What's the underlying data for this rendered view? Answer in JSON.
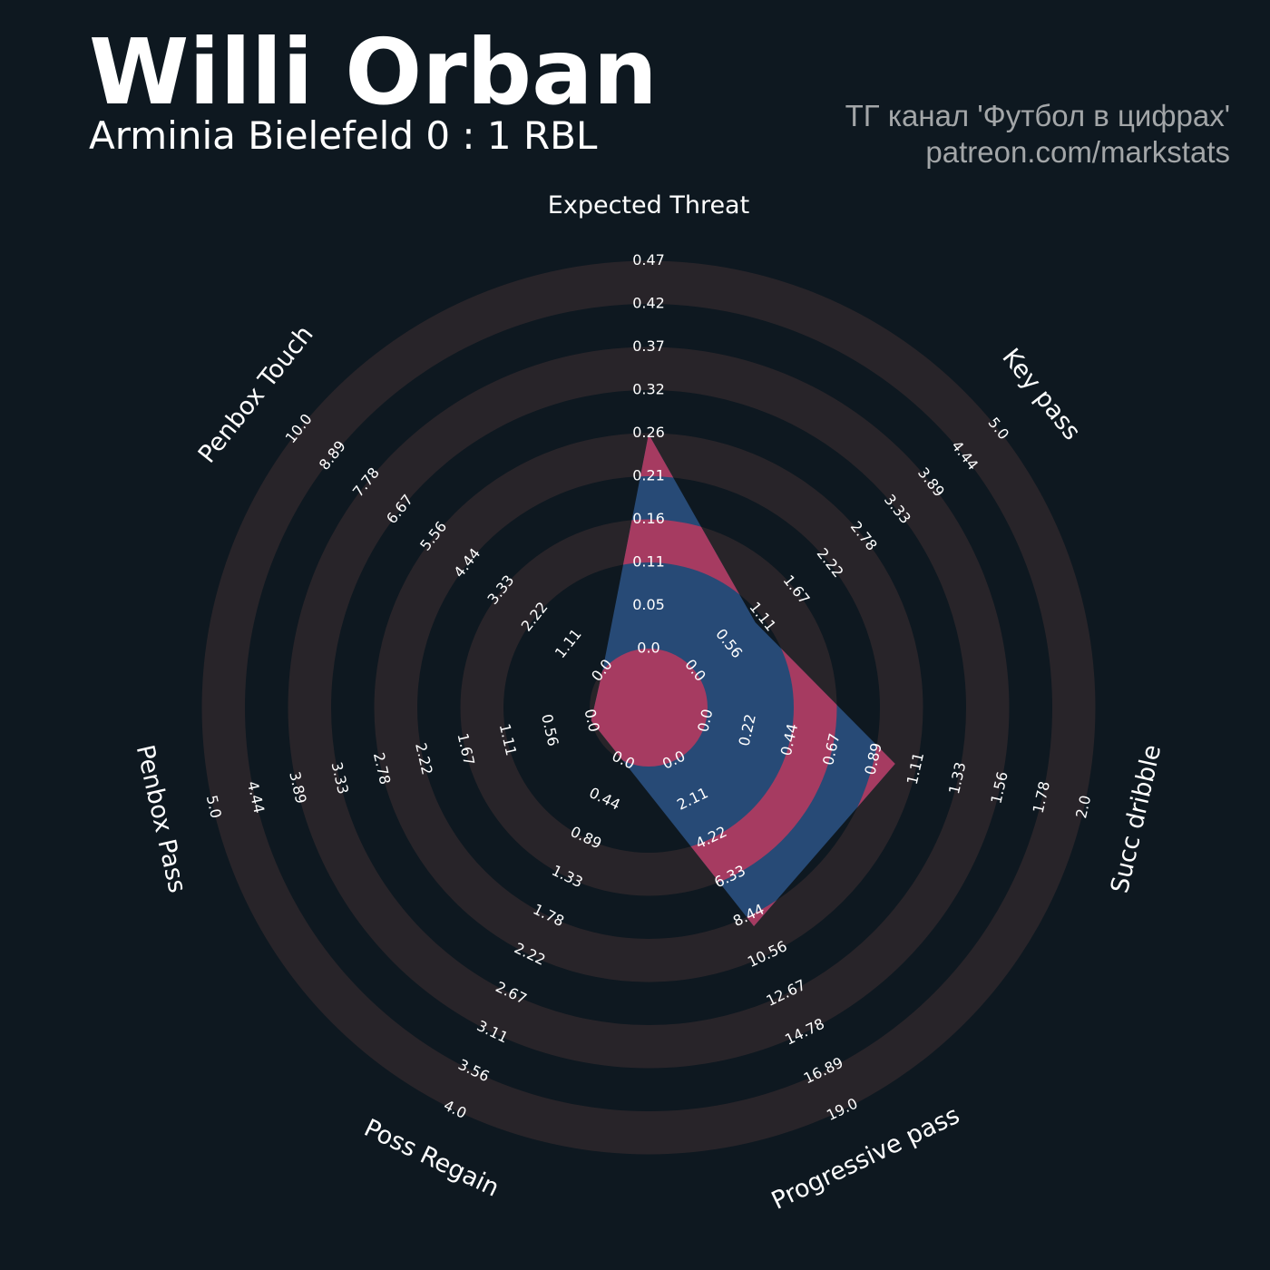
{
  "header": {
    "player_name": "Willi Orban",
    "match": "Arminia Bielefeld 0 : 1 RBL",
    "credit_line_1": "ТГ канал 'Футбол в цифрах'",
    "credit_line_2": "patreon.com/markstats"
  },
  "colors": {
    "background": "#0e1820",
    "ring": "#282429",
    "polygon": "#274a76",
    "polygon_highlight": "#a63b61",
    "text": "#ffffff",
    "credit": "#a3a6a8"
  },
  "chart_data": {
    "type": "radar",
    "title": "Willi Orban",
    "subtitle": "Arminia Bielefeld 0 : 1 RBL",
    "params": [
      {
        "name": "Expected Threat",
        "min": 0.0,
        "max": 0.47,
        "value": 0.26,
        "ticks": [
          "0.0",
          "0.05",
          "0.11",
          "0.16",
          "0.21",
          "0.26",
          "0.32",
          "0.37",
          "0.42",
          "0.47"
        ]
      },
      {
        "name": "Key pass",
        "min": 0.0,
        "max": 5.0,
        "value": 1.0,
        "ticks": [
          "0.0",
          "0.56",
          "1.11",
          "1.67",
          "2.22",
          "2.78",
          "3.33",
          "3.89",
          "4.44",
          "5.0"
        ]
      },
      {
        "name": "Succ dribble",
        "min": 0.0,
        "max": 2.0,
        "value": 1.0,
        "ticks": [
          "0.0",
          "0.22",
          "0.44",
          "0.67",
          "0.89",
          "1.11",
          "1.33",
          "1.56",
          "1.78",
          "2.0"
        ]
      },
      {
        "name": "Progressive pass",
        "min": 0.0,
        "max": 19.0,
        "value": 9.0,
        "ticks": [
          "0.0",
          "2.11",
          "4.22",
          "6.33",
          "8.44",
          "10.56",
          "12.67",
          "14.78",
          "16.89",
          "19.0"
        ]
      },
      {
        "name": "Poss Regain",
        "min": 0.0,
        "max": 4.0,
        "value": 0.0,
        "ticks": [
          "0.0",
          "0.44",
          "0.89",
          "1.33",
          "1.78",
          "2.22",
          "2.67",
          "3.11",
          "3.56",
          "4.0"
        ]
      },
      {
        "name": "Penbox Pass",
        "min": 0.0,
        "max": 5.0,
        "value": 0.0,
        "ticks": [
          "0.0",
          "0.56",
          "1.11",
          "1.67",
          "2.22",
          "2.78",
          "3.33",
          "3.89",
          "4.44",
          "5.0"
        ]
      },
      {
        "name": "Penbox Touch",
        "min": 0.0,
        "max": 10.0,
        "value": 0.0,
        "ticks": [
          "0.0",
          "1.11",
          "2.22",
          "3.33",
          "4.44",
          "5.56",
          "6.67",
          "7.78",
          "8.89",
          "10.0"
        ]
      }
    ]
  }
}
